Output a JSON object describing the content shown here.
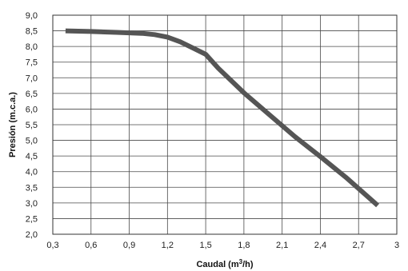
{
  "chart_data": {
    "type": "line",
    "title": "",
    "xlabel": {
      "main": "Caudal (m",
      "sup": "3",
      "end": "/h)"
    },
    "ylabel": "Presión (m.c.a.)",
    "xlim": [
      0.3,
      3.0
    ],
    "ylim": [
      2.0,
      9.0
    ],
    "x_ticks": [
      0.3,
      0.6,
      0.9,
      1.2,
      1.5,
      1.8,
      2.1,
      2.4,
      2.7,
      3.0
    ],
    "x_tick_labels": [
      "0,3",
      "0,6",
      "0,9",
      "1,2",
      "1,5",
      "1,8",
      "2,1",
      "2,4",
      "2,7",
      "3"
    ],
    "y_ticks": [
      2.0,
      2.5,
      3.0,
      3.5,
      4.0,
      4.5,
      5.0,
      5.5,
      6.0,
      6.5,
      7.0,
      7.5,
      8.0,
      8.5,
      9.0
    ],
    "y_tick_labels": [
      "2,0",
      "2,5",
      "3,0",
      "3,5",
      "4,0",
      "4,5",
      "5,0",
      "5,5",
      "6,0",
      "6,5",
      "7,0",
      "7,5",
      "8,0",
      "8,5",
      "9,0"
    ],
    "grid": true,
    "legend": "none",
    "series": [
      {
        "color": "#555555",
        "x": [
          0.4,
          0.6,
          0.8,
          1.0,
          1.1,
          1.2,
          1.3,
          1.4,
          1.5,
          1.6,
          1.8,
          2.0,
          2.2,
          2.4,
          2.6,
          2.85
        ],
        "y": [
          8.5,
          8.48,
          8.45,
          8.42,
          8.38,
          8.3,
          8.15,
          7.95,
          7.75,
          7.3,
          6.52,
          5.82,
          5.12,
          4.48,
          3.82,
          2.92
        ]
      }
    ]
  }
}
